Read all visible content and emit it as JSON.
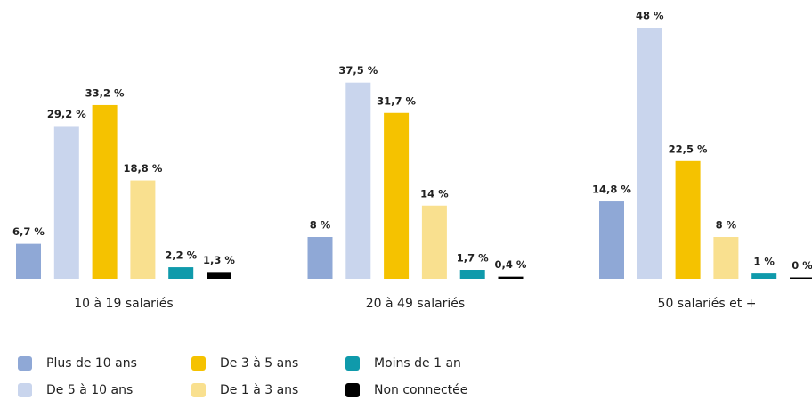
{
  "chart_data": {
    "type": "bar",
    "categories": [
      "10 à 19 salariés",
      "20 à 49 salariés",
      "50 salariés et +"
    ],
    "series": [
      {
        "name": "Plus de 10 ans",
        "color": "#8fa8d6",
        "values": [
          6.7,
          8,
          14.8
        ],
        "value_labels": [
          "6,7 %",
          "8 %",
          "14,8 %"
        ]
      },
      {
        "name": "De 5 à 10 ans",
        "color": "#c9d5ed",
        "values": [
          29.2,
          37.5,
          48
        ],
        "value_labels": [
          "29,2 %",
          "37,5 %",
          "48 %"
        ]
      },
      {
        "name": "De 3 à 5 ans",
        "color": "#f5c200",
        "values": [
          33.2,
          31.7,
          22.5
        ],
        "value_labels": [
          "33,2 %",
          "31,7 %",
          "22,5 %"
        ]
      },
      {
        "name": "De 1 à 3 ans",
        "color": "#f9e08f",
        "values": [
          18.8,
          14,
          8
        ],
        "value_labels": [
          "18,8 %",
          "14 %",
          "8 %"
        ]
      },
      {
        "name": "Moins de 1 an",
        "color": "#0f9aab",
        "values": [
          2.2,
          1.7,
          1
        ],
        "value_labels": [
          "2,2 %",
          "1,7 %",
          "1 %"
        ]
      },
      {
        "name": "Non connectée",
        "color": "#000000",
        "values": [
          1.3,
          0.4,
          0
        ],
        "value_labels": [
          "1,3 %",
          "0,4 %",
          "0 %"
        ]
      }
    ]
  }
}
